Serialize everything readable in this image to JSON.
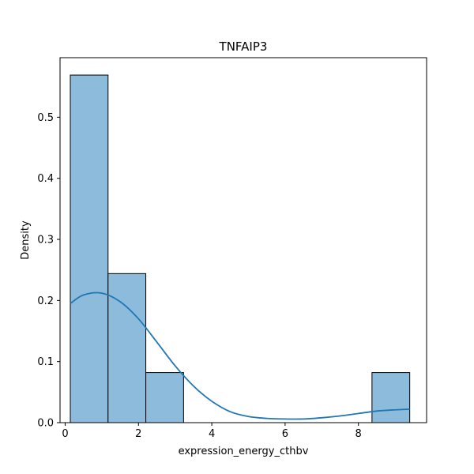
{
  "chart_data": {
    "type": "bar",
    "title": "TNFAIP3",
    "xlabel": "expression_energy_cthbv",
    "ylabel": "Density",
    "xlim": [
      -0.14,
      9.86
    ],
    "ylim": [
      0,
      0.5975
    ],
    "x_ticks": [
      0,
      2,
      4,
      6,
      8
    ],
    "y_ticks": [
      0.0,
      0.1,
      0.2,
      0.3,
      0.4,
      0.5
    ],
    "x_tick_labels": [
      "0",
      "2",
      "4",
      "6",
      "8"
    ],
    "y_tick_labels": [
      "0.0",
      "0.1",
      "0.2",
      "0.3",
      "0.4",
      "0.5"
    ],
    "grid": false,
    "bins": [
      {
        "x0": 0.14,
        "x1": 1.17,
        "density": 0.569
      },
      {
        "x0": 1.17,
        "x1": 2.2,
        "density": 0.244
      },
      {
        "x0": 2.2,
        "x1": 3.23,
        "density": 0.082
      },
      {
        "x0": 8.37,
        "x1": 9.4,
        "density": 0.082
      }
    ],
    "kde": {
      "x": [
        0.14,
        0.5,
        1.0,
        1.5,
        2.0,
        2.5,
        3.0,
        3.5,
        4.0,
        4.5,
        5.0,
        5.5,
        6.0,
        6.5,
        7.0,
        7.5,
        8.0,
        8.5,
        9.0,
        9.4
      ],
      "y": [
        0.195,
        0.209,
        0.212,
        0.198,
        0.17,
        0.132,
        0.093,
        0.06,
        0.035,
        0.018,
        0.01,
        0.007,
        0.006,
        0.006,
        0.008,
        0.011,
        0.015,
        0.019,
        0.021,
        0.022
      ]
    },
    "colors": {
      "bar_fill": "#8dbbdc",
      "bar_edge": "#000000",
      "kde_line": "#1f77b4"
    }
  }
}
